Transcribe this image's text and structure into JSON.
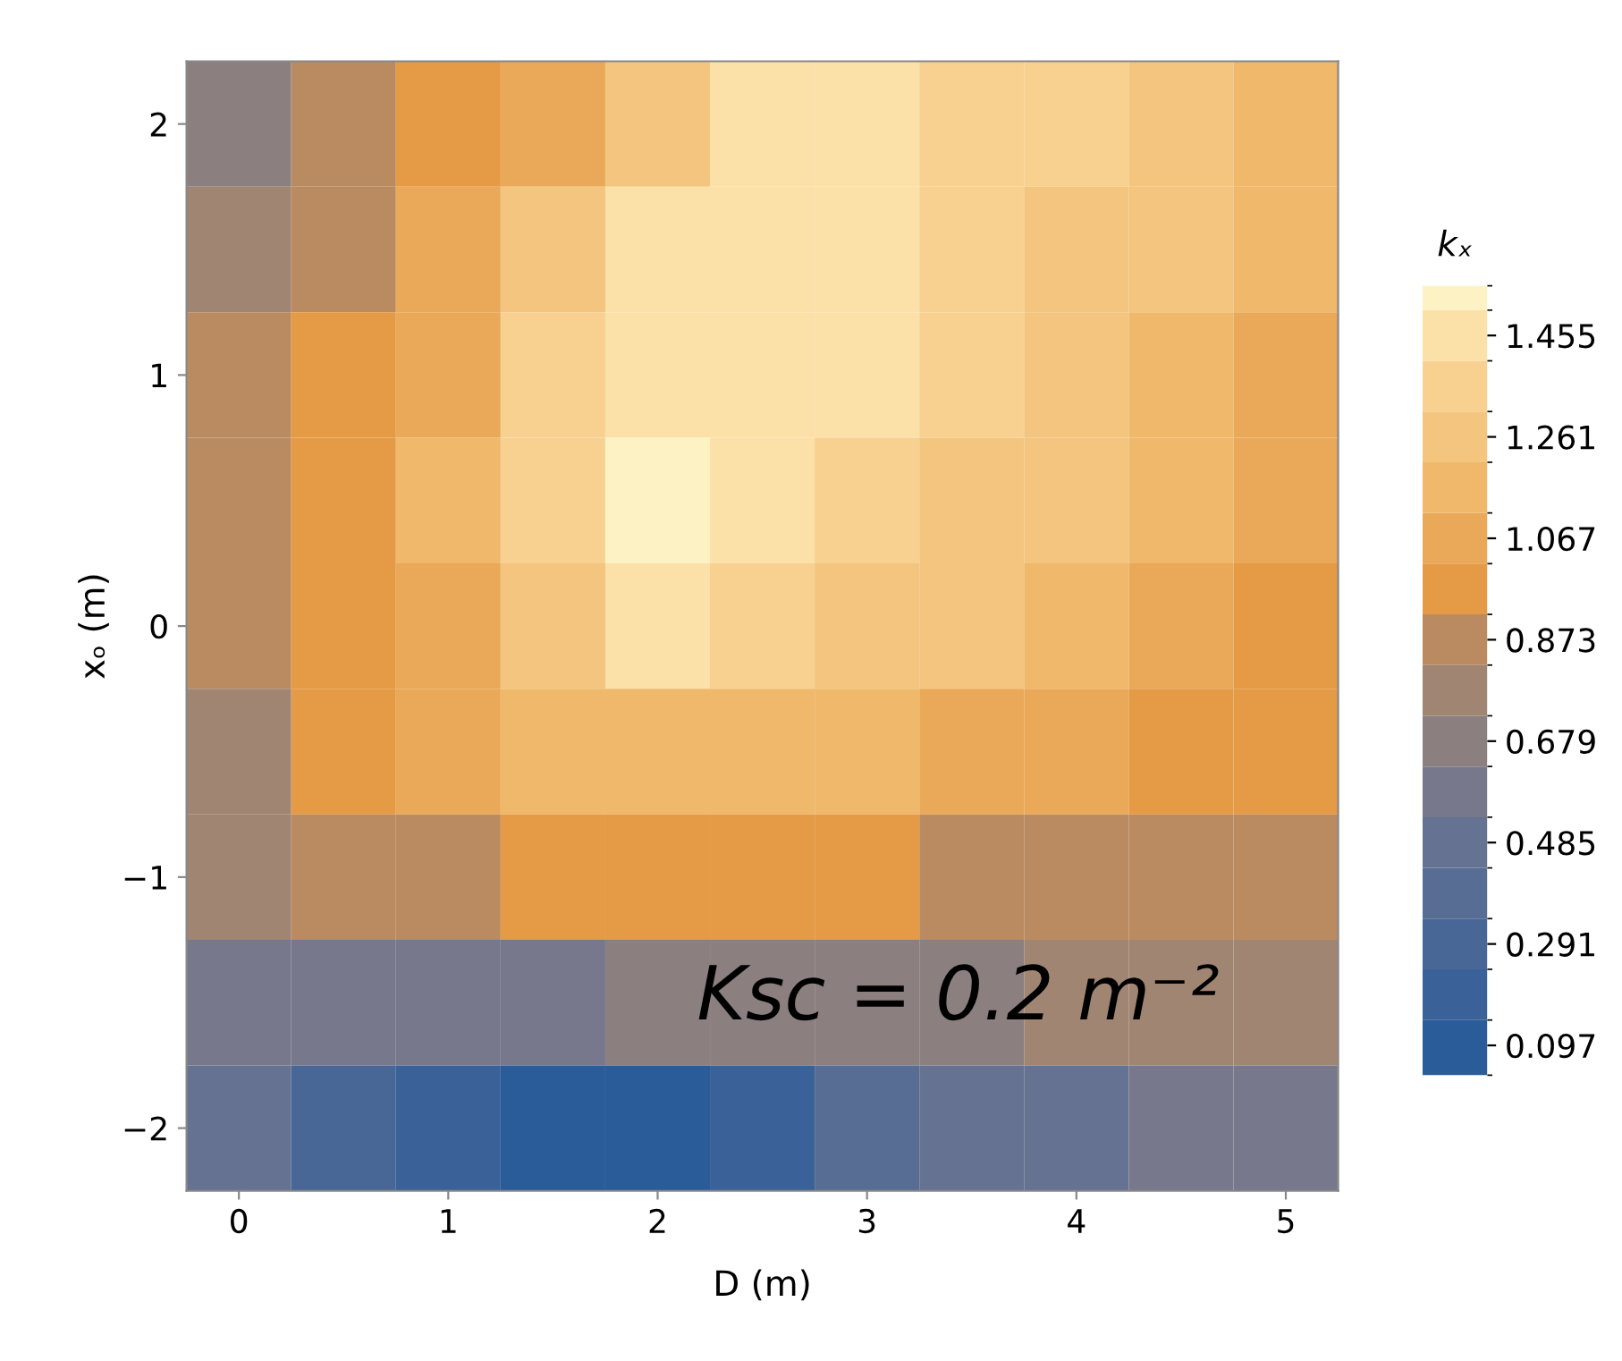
{
  "chart_data": {
    "type": "heatmap",
    "xlabel": "D (m)",
    "ylabel": "xₒ (m)",
    "clabel": "kₓ",
    "categories": [
      "0",
      null,
      "1",
      null,
      "2",
      null,
      "3",
      null,
      "4",
      null,
      "5"
    ],
    "y_categories": [
      "2",
      null,
      "1",
      null,
      "0",
      null,
      "−1",
      null,
      "−2"
    ],
    "cells": [
      [
        0.65,
        0.85,
        0.95,
        1.1,
        1.3,
        1.42,
        1.42,
        1.38,
        1.32,
        1.25,
        1.2
      ],
      [
        0.75,
        0.9,
        1.05,
        1.25,
        1.42,
        1.45,
        1.42,
        1.35,
        1.28,
        1.22,
        1.12
      ],
      [
        0.85,
        0.95,
        1.1,
        1.35,
        1.5,
        1.5,
        1.42,
        1.32,
        1.25,
        1.18,
        1.08
      ],
      [
        0.9,
        1.0,
        1.15,
        1.4,
        1.52,
        1.5,
        1.38,
        1.3,
        1.22,
        1.15,
        1.05
      ],
      [
        0.88,
        0.98,
        1.1,
        1.3,
        1.42,
        1.4,
        1.3,
        1.22,
        1.15,
        1.08,
        1.0
      ],
      [
        0.82,
        0.95,
        1.05,
        1.15,
        1.2,
        1.2,
        1.15,
        1.1,
        1.05,
        1.0,
        0.95
      ],
      [
        0.78,
        0.88,
        0.92,
        0.95,
        0.98,
        0.98,
        0.95,
        0.92,
        0.9,
        0.88,
        0.85
      ],
      [
        0.6,
        0.6,
        0.6,
        0.62,
        0.65,
        0.68,
        0.7,
        0.72,
        0.75,
        0.75,
        0.78
      ],
      [
        0.45,
        0.3,
        0.15,
        0.1,
        0.12,
        0.2,
        0.35,
        0.45,
        0.5,
        0.55,
        0.6
      ]
    ],
    "clim": [
      0.04,
      1.55
    ],
    "cticks": [
      0.097,
      0.291,
      0.485,
      0.679,
      0.873,
      1.067,
      1.261,
      1.455
    ],
    "annotations": [
      "Ksc = 0.2 m⁻²"
    ]
  }
}
